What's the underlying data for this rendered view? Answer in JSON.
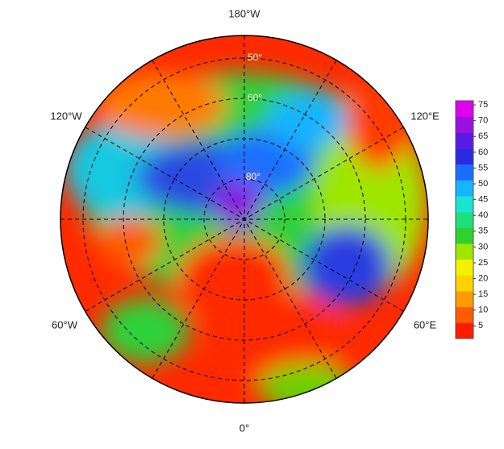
{
  "map": {
    "longitude_labels": [
      "180°W",
      "120°W",
      "120°E",
      "60°W",
      "60°E",
      "0°"
    ],
    "latitude_labels": [
      "50°",
      "60°",
      "80°"
    ],
    "colorbar": {
      "lim": [
        1,
        76.3
      ],
      "ticks": [
        5,
        10,
        15,
        20,
        25,
        30,
        35,
        40,
        45,
        50,
        55,
        60,
        65,
        70,
        75
      ],
      "colors": [
        "#ff1a00",
        "#ff5a00",
        "#ff9a00",
        "#ffd200",
        "#f2f200",
        "#9ee600",
        "#2ed12e",
        "#1ee07a",
        "#18e6d2",
        "#15b4ff",
        "#1a6eff",
        "#2a2ae0",
        "#5a1ae6",
        "#9a10e0",
        "#e000f0"
      ]
    }
  }
}
